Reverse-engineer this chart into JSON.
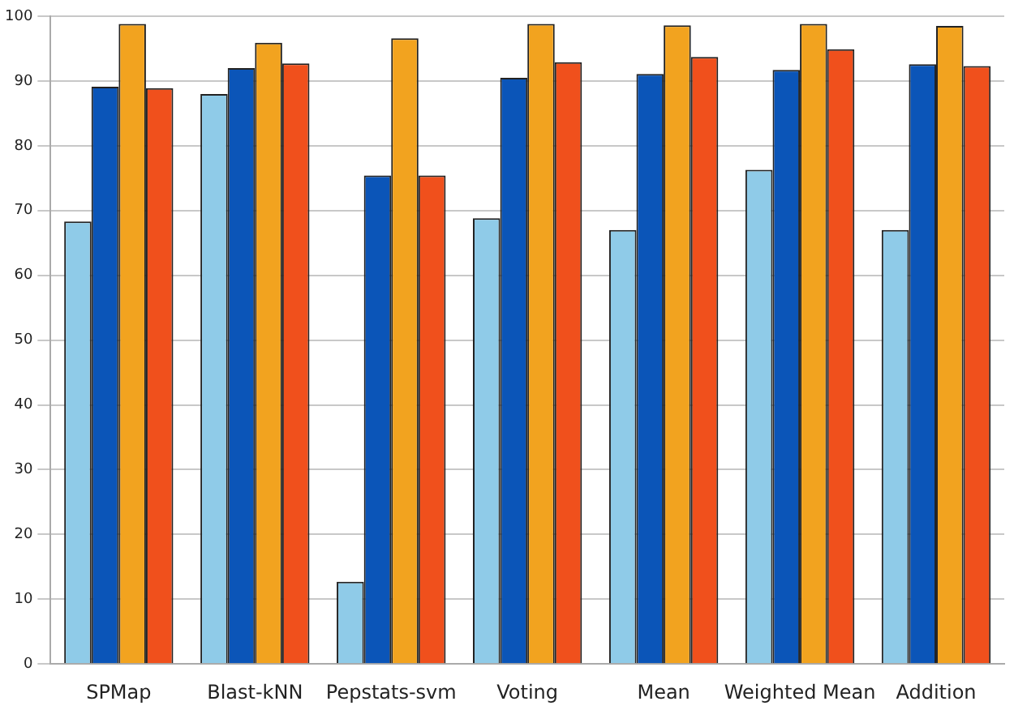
{
  "chart_data": {
    "type": "bar",
    "categories": [
      "SPMap",
      "Blast-kNN",
      "Pepstats-svm",
      "Voting",
      "Mean",
      "Weighted Mean",
      "Addition"
    ],
    "series": [
      {
        "color": "#8fcbe8",
        "values": [
          68.3,
          88,
          12.7,
          68.8,
          67,
          76.3,
          67
        ]
      },
      {
        "color": "#0b55b8",
        "values": [
          89.1,
          92,
          75.4,
          90.5,
          91.1,
          91.7,
          92.6
        ]
      },
      {
        "color": "#f2a31f",
        "values": [
          98.8,
          95.9,
          96.6,
          98.8,
          98.6,
          98.8,
          98.5
        ]
      },
      {
        "color": "#f0501c",
        "values": [
          88.9,
          92.7,
          75.4,
          92.9,
          93.7,
          94.9,
          92.3
        ]
      }
    ],
    "ylim": [
      0,
      100
    ],
    "yticks": [
      0,
      10,
      20,
      30,
      40,
      50,
      60,
      70,
      80,
      90,
      100
    ],
    "grid": "y",
    "legend": false
  }
}
